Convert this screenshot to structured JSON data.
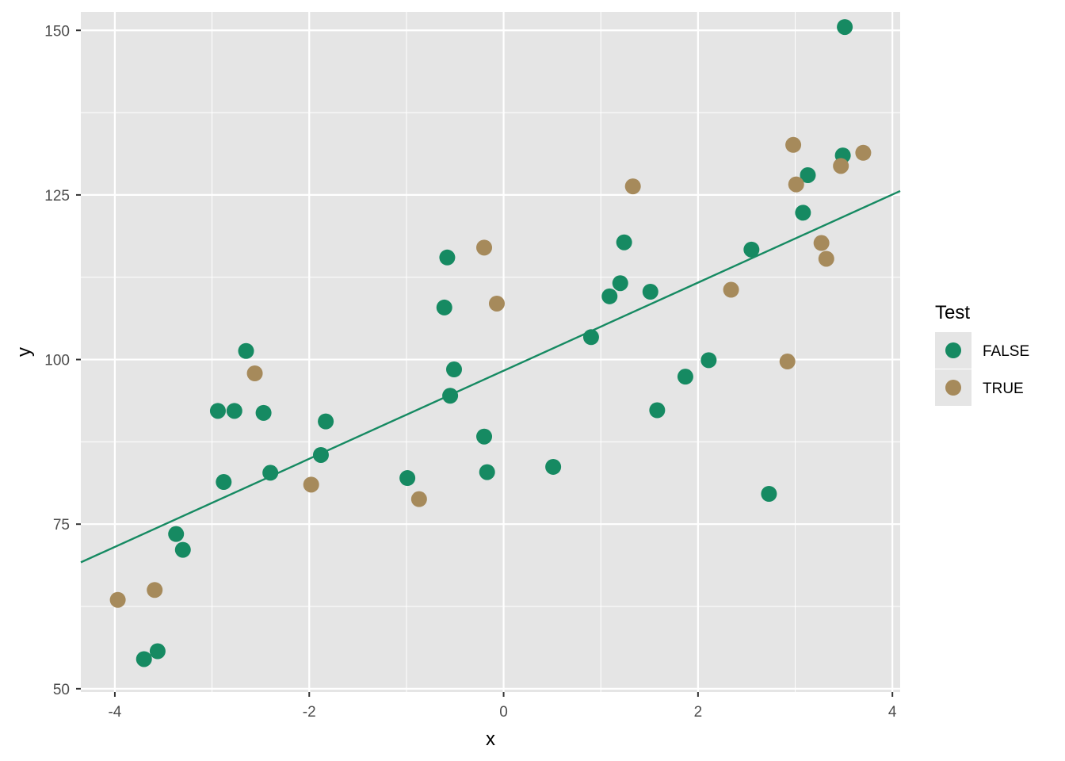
{
  "chart_data": {
    "type": "scatter",
    "xlabel": "x",
    "ylabel": "y",
    "xlim": [
      -4.35,
      4.08
    ],
    "ylim": [
      49.5,
      152.8
    ],
    "x_ticks": [
      -4,
      -2,
      0,
      2,
      4
    ],
    "y_ticks": [
      50,
      75,
      100,
      125,
      150
    ],
    "x_tick_labels": [
      "-4",
      "-2",
      "0",
      "2",
      "4"
    ],
    "y_tick_labels": [
      "50",
      "75",
      "100",
      "125",
      "150"
    ],
    "grid": true,
    "legend": {
      "title": "Test",
      "position": "right",
      "entries": [
        "FALSE",
        "TRUE"
      ]
    },
    "series": [
      {
        "name": "FALSE",
        "color": "#168a62",
        "points": [
          [
            3.51,
            150.5
          ],
          [
            3.49,
            131.0
          ],
          [
            3.13,
            128.0
          ],
          [
            3.08,
            122.3
          ],
          [
            2.55,
            116.7
          ],
          [
            1.24,
            117.8
          ],
          [
            1.2,
            111.6
          ],
          [
            1.09,
            109.6
          ],
          [
            1.51,
            110.3
          ],
          [
            0.9,
            103.4
          ],
          [
            2.11,
            99.9
          ],
          [
            1.87,
            97.4
          ],
          [
            1.58,
            92.3
          ],
          [
            2.73,
            79.6
          ],
          [
            0.51,
            83.7
          ],
          [
            -0.58,
            115.5
          ],
          [
            -0.61,
            107.9
          ],
          [
            -0.51,
            98.5
          ],
          [
            -0.55,
            94.5
          ],
          [
            -0.2,
            88.3
          ],
          [
            -0.17,
            82.9
          ],
          [
            -0.99,
            82.0
          ],
          [
            -1.83,
            90.6
          ],
          [
            -1.88,
            85.5
          ],
          [
            -2.65,
            101.3
          ],
          [
            -2.47,
            91.9
          ],
          [
            -2.77,
            92.2
          ],
          [
            -2.94,
            92.2
          ],
          [
            -2.4,
            82.8
          ],
          [
            -2.88,
            81.4
          ],
          [
            -3.37,
            73.5
          ],
          [
            -3.3,
            71.1
          ],
          [
            -3.7,
            54.5
          ],
          [
            -3.56,
            55.7
          ]
        ]
      },
      {
        "name": "TRUE",
        "color": "#a68a5b",
        "points": [
          [
            2.98,
            132.6
          ],
          [
            3.01,
            126.6
          ],
          [
            3.7,
            131.4
          ],
          [
            3.47,
            129.4
          ],
          [
            1.33,
            126.3
          ],
          [
            3.27,
            117.7
          ],
          [
            3.32,
            115.3
          ],
          [
            2.34,
            110.6
          ],
          [
            2.92,
            99.7
          ],
          [
            -0.2,
            117.0
          ],
          [
            -0.07,
            108.5
          ],
          [
            -2.56,
            97.9
          ],
          [
            -1.98,
            81.0
          ],
          [
            -0.87,
            78.8
          ],
          [
            -3.97,
            63.5
          ],
          [
            -3.59,
            65.0
          ]
        ]
      }
    ],
    "trend_line": {
      "color": "#168a62",
      "from": [
        -4.35,
        69.2
      ],
      "to": [
        4.08,
        125.6
      ]
    }
  }
}
